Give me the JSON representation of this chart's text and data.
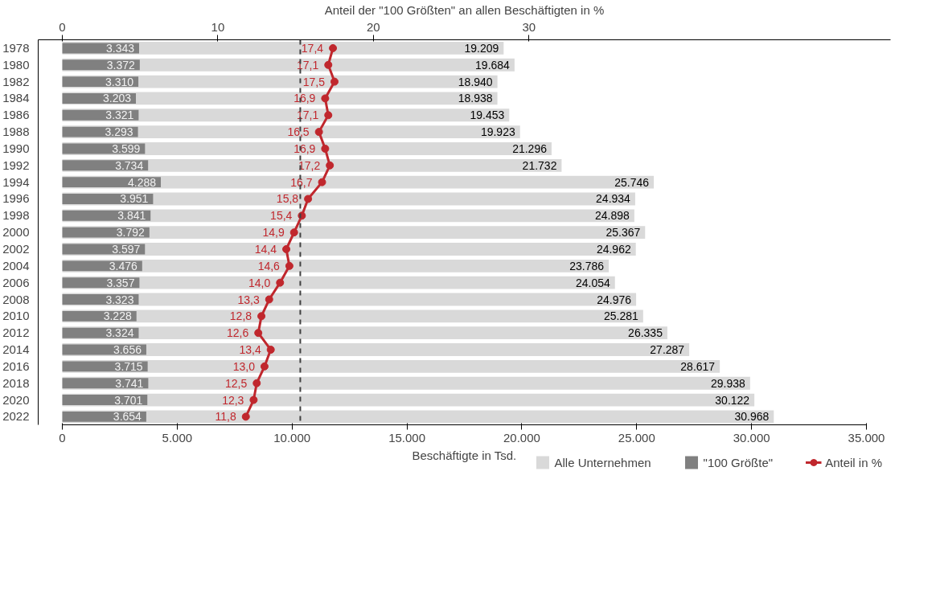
{
  "chart_data": {
    "type": "bar",
    "orientation": "horizontal",
    "xlabel": "Beschäftigte in Tsd.",
    "x2label": "Anteil der \"100 Größten\" an allen Beschäftigten in %",
    "categories": [
      "1978",
      "1980",
      "1982",
      "1984",
      "1986",
      "1988",
      "1990",
      "1992",
      "1994",
      "1996",
      "1998",
      "2000",
      "2002",
      "2004",
      "2006",
      "2008",
      "2010",
      "2012",
      "2014",
      "2016",
      "2018",
      "2020",
      "2022"
    ],
    "series": [
      {
        "name": "Alle Unternehmen",
        "type": "bar",
        "color": "#d9d9d9",
        "values": [
          19209,
          19684,
          18940,
          18938,
          19453,
          19923,
          21296,
          21732,
          25746,
          24934,
          24898,
          25367,
          24962,
          23786,
          24054,
          24976,
          25281,
          26335,
          27287,
          28617,
          29938,
          30122,
          30968
        ],
        "value_labels": [
          "19.209",
          "19.684",
          "18.940",
          "18.938",
          "19.453",
          "19.923",
          "21.296",
          "21.732",
          "25.746",
          "24.934",
          "24.898",
          "25.367",
          "24.962",
          "23.786",
          "24.054",
          "24.976",
          "25.281",
          "26.335",
          "27.287",
          "28.617",
          "29.938",
          "30.122",
          "30.968"
        ]
      },
      {
        "name": "\"100 Größte\"",
        "color": "#808080",
        "values": [
          3343,
          3372,
          3310,
          3203,
          3321,
          3293,
          3599,
          3734,
          4288,
          3951,
          3841,
          3792,
          3597,
          3476,
          3357,
          3323,
          3228,
          3324,
          3656,
          3715,
          3741,
          3701,
          3654
        ],
        "value_labels": [
          "3.343",
          "3.372",
          "3.310",
          "3.203",
          "3.321",
          "3.293",
          "3.599",
          "3.734",
          "4.288",
          "3.951",
          "3.841",
          "3.792",
          "3.597",
          "3.476",
          "3.357",
          "3.323",
          "3.228",
          "3.324",
          "3.656",
          "3.715",
          "3.741",
          "3.701",
          "3.654"
        ]
      },
      {
        "name": "Anteil in %",
        "type": "line",
        "axis": "x2",
        "color": "#c0272d",
        "values": [
          17.4,
          17.1,
          17.5,
          16.9,
          17.1,
          16.5,
          16.9,
          17.2,
          16.7,
          15.8,
          15.4,
          14.9,
          14.4,
          14.6,
          14.0,
          13.3,
          12.8,
          12.6,
          13.4,
          13.0,
          12.5,
          12.3,
          11.8
        ],
        "value_labels": [
          "17,4",
          "17,1",
          "17,5",
          "16,9",
          "17,1",
          "16,5",
          "16,9",
          "17,2",
          "16,7",
          "15,8",
          "15,4",
          "14,9",
          "14,4",
          "14,6",
          "14,0",
          "13,3",
          "12,8",
          "12,6",
          "13,4",
          "13,0",
          "12,5",
          "12,3",
          "11,8"
        ]
      }
    ],
    "xlim": [
      0,
      35000
    ],
    "xticks": [
      0,
      {
        "value": 5000,
        "label": "5.000"
      },
      {
        "value": 10000,
        "label": "10.000"
      },
      {
        "value": 15000,
        "label": "15.000"
      },
      {
        "value": 20000,
        "label": "20.000"
      },
      {
        "value": 25000,
        "label": "25.000"
      },
      {
        "value": 30000,
        "label": "30.000"
      },
      {
        "value": 35000,
        "label": "35.000"
      }
    ],
    "x2lim": [
      0,
      51.7
    ],
    "x2ticks": [
      0,
      10,
      20,
      30
    ],
    "ref_lines": [
      {
        "axis": "x2",
        "value": 15.3,
        "color": "#404040",
        "line_style": "dashed"
      }
    ],
    "marker": "circle",
    "line_style": "solid",
    "grid": false,
    "legend": "bottom"
  }
}
